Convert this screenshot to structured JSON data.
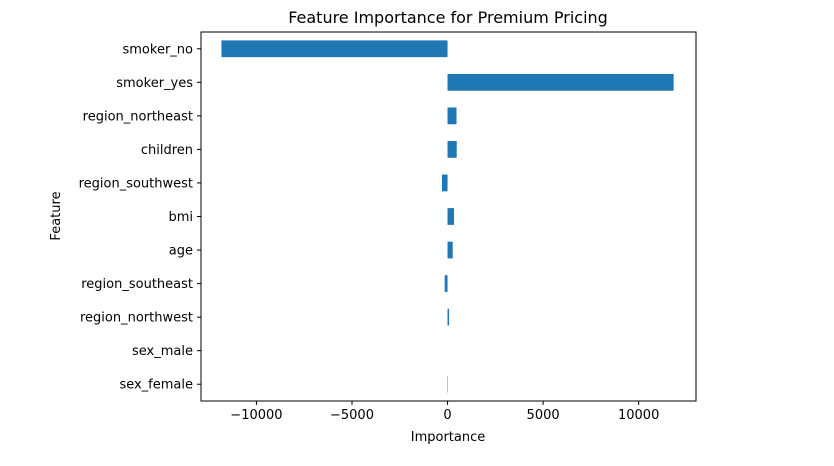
{
  "chart_data": {
    "type": "bar",
    "orientation": "horizontal",
    "title": "Feature Importance for Premium Pricing",
    "xlabel": "Importance",
    "ylabel": "Feature",
    "categories": [
      "sex_female",
      "sex_male",
      "region_northwest",
      "region_southeast",
      "age",
      "bmi",
      "region_southwest",
      "children",
      "region_northeast",
      "smoker_yes",
      "smoker_no"
    ],
    "values": [
      20,
      0,
      80,
      -150,
      270,
      340,
      -290,
      480,
      470,
      11830,
      -11830
    ],
    "xlim": [
      -12900,
      13000
    ],
    "xticks": [
      -10000,
      -5000,
      0,
      5000,
      10000
    ],
    "xtick_labels": [
      "−10000",
      "−5000",
      "0",
      "5000",
      "10000"
    ],
    "grid": false,
    "legend": "none",
    "bar_color": "#1f77b4"
  }
}
